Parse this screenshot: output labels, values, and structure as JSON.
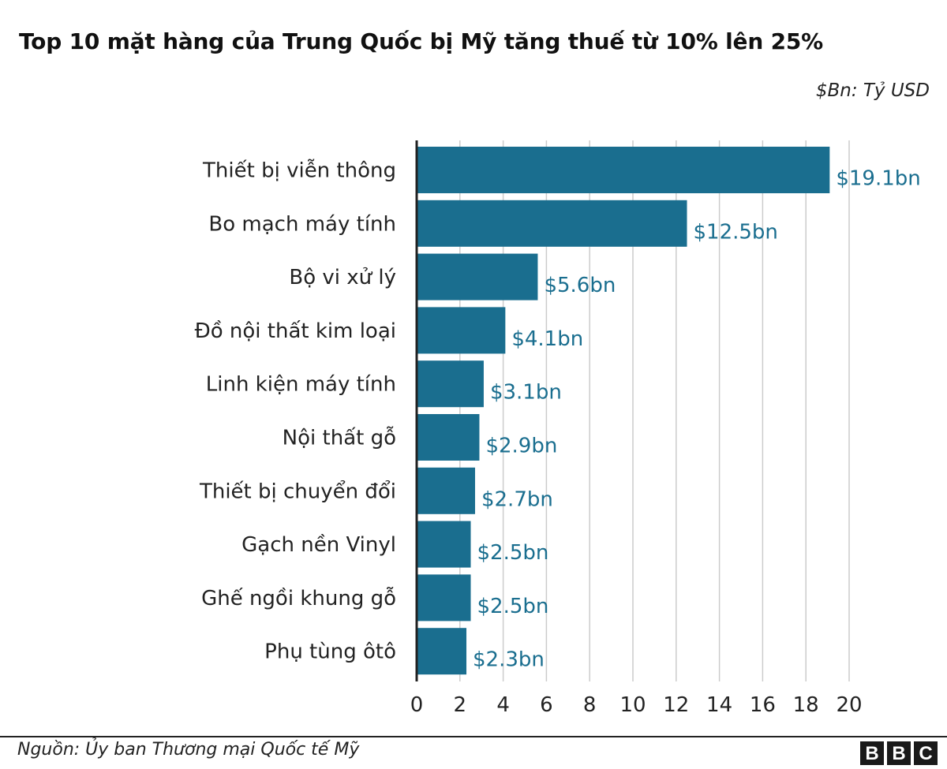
{
  "header": {
    "title": "Top 10 mặt hàng của Trung Quốc bị Mỹ tăng thuế từ 10% lên 25%",
    "unit_note": "$Bn: Tỷ USD"
  },
  "footer": {
    "source": "Nguồn: Ủy ban Thương mại Quốc tế Mỹ",
    "logo": [
      "B",
      "B",
      "C"
    ]
  },
  "colors": {
    "bar": "#1a6e8f",
    "label": "#1a6e8f",
    "grid": "#cccccc",
    "axis": "#222222"
  },
  "chart_data": {
    "type": "bar",
    "orientation": "horizontal",
    "title": "Top 10 mặt hàng của Trung Quốc bị Mỹ tăng thuế từ 10% lên 25%",
    "categories": [
      "Thiết bị viễn thông",
      "Bo mạch máy tính",
      "Bộ vi xử lý",
      "Đồ nội thất kim loại",
      "Linh kiện máy tính",
      "Nội thất gỗ",
      "Thiết bị chuyển đổi",
      "Gạch nền Vinyl",
      "Ghế ngồi khung gỗ",
      "Phụ tùng ôtô"
    ],
    "values": [
      19.1,
      12.5,
      5.6,
      4.1,
      3.1,
      2.9,
      2.7,
      2.5,
      2.5,
      2.3
    ],
    "value_labels": [
      "$19.1bn",
      "$12.5bn",
      "$5.6bn",
      "$4.1bn",
      "$3.1bn",
      "$2.9bn",
      "$2.7bn",
      "$2.5bn",
      "$2.5bn",
      "$2.3bn"
    ],
    "xlim": [
      0,
      20
    ],
    "xticks": [
      0,
      2,
      4,
      6,
      8,
      10,
      12,
      14,
      16,
      18,
      20
    ],
    "xtick_labels": [
      "0",
      "2",
      "4",
      "6",
      "8",
      "10",
      "12",
      "14",
      "16",
      "18",
      "20"
    ],
    "xlabel": "",
    "ylabel": "",
    "grid": true
  }
}
